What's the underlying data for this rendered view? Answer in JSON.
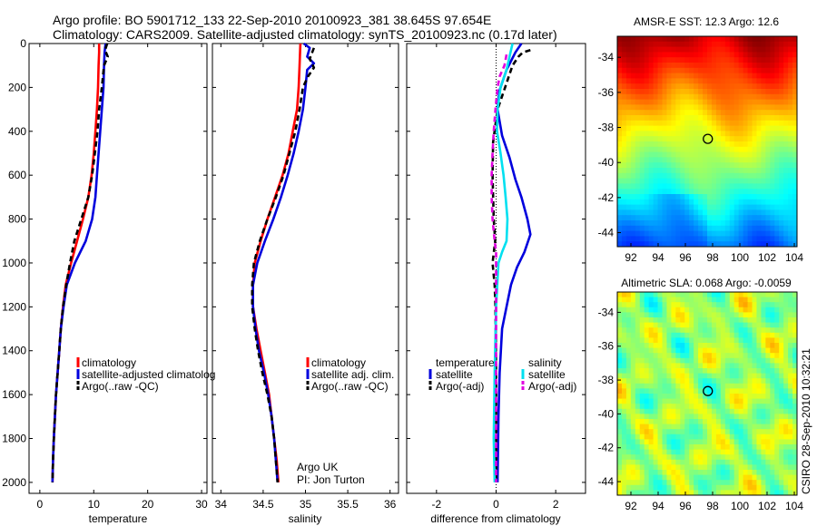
{
  "title_line1": "Argo profile: BO 5901712_133 22-Sep-2010 20100923_381 38.645S 97.654E",
  "title_line2": "Climatology: CARS2009. Satellite-adjusted climatology: synTS_20100923.nc (0.17d later)",
  "side_label": "CSIRO 28-Sep-2010 10:32:21",
  "chart_data": [
    {
      "type": "line",
      "xlabel": "temperature",
      "xlim": [
        -2,
        31
      ],
      "ylim": [
        2050,
        0
      ],
      "xticks": [
        0,
        10,
        20,
        30
      ],
      "yticks": [
        0,
        200,
        400,
        600,
        800,
        1000,
        1200,
        1400,
        1600,
        1800,
        2000
      ],
      "legend": [
        "climatology",
        "satellite-adjusted climatolog",
        "Argo(..raw -QC)"
      ],
      "series": [
        {
          "name": "climatology",
          "color": "#ff0000",
          "dash": "solid",
          "points": [
            [
              11.0,
              0
            ],
            [
              11.0,
              40
            ],
            [
              10.9,
              100
            ],
            [
              10.8,
              200
            ],
            [
              10.6,
              300
            ],
            [
              10.3,
              400
            ],
            [
              10.0,
              500
            ],
            [
              9.6,
              600
            ],
            [
              9.0,
              700
            ],
            [
              8.0,
              800
            ],
            [
              6.9,
              900
            ],
            [
              5.8,
              1000
            ],
            [
              4.8,
              1100
            ],
            [
              4.3,
              1200
            ],
            [
              3.9,
              1300
            ],
            [
              3.6,
              1400
            ],
            [
              3.3,
              1500
            ],
            [
              3.0,
              1600
            ],
            [
              2.8,
              1700
            ],
            [
              2.6,
              1800
            ],
            [
              2.45,
              1900
            ],
            [
              2.35,
              2000
            ]
          ]
        },
        {
          "name": "satellite-adjusted climatolog",
          "color": "#0000dd",
          "dash": "solid",
          "points": [
            [
              12.2,
              0
            ],
            [
              12.0,
              40
            ],
            [
              11.9,
              100
            ],
            [
              11.8,
              200
            ],
            [
              11.5,
              300
            ],
            [
              11.2,
              400
            ],
            [
              10.9,
              500
            ],
            [
              10.6,
              600
            ],
            [
              10.3,
              700
            ],
            [
              9.7,
              800
            ],
            [
              8.5,
              900
            ],
            [
              6.5,
              1000
            ],
            [
              5.0,
              1100
            ],
            [
              4.4,
              1200
            ],
            [
              3.9,
              1300
            ],
            [
              3.6,
              1400
            ],
            [
              3.3,
              1500
            ],
            [
              3.0,
              1600
            ],
            [
              2.8,
              1700
            ],
            [
              2.6,
              1800
            ],
            [
              2.45,
              1900
            ],
            [
              2.35,
              2000
            ]
          ]
        },
        {
          "name": "Argo(..raw -QC)",
          "color": "#000000",
          "dash": "6,4",
          "points": [
            [
              12.5,
              0
            ],
            [
              12.1,
              30
            ],
            [
              12.6,
              60
            ],
            [
              11.9,
              100
            ],
            [
              11.7,
              150
            ],
            [
              11.5,
              200
            ],
            [
              11.0,
              300
            ],
            [
              10.7,
              400
            ],
            [
              10.2,
              500
            ],
            [
              9.7,
              600
            ],
            [
              9.0,
              700
            ],
            [
              7.7,
              800
            ],
            [
              6.4,
              900
            ],
            [
              5.6,
              1000
            ],
            [
              4.9,
              1100
            ],
            [
              4.3,
              1200
            ],
            [
              3.9,
              1300
            ],
            [
              3.6,
              1400
            ],
            [
              3.3,
              1500
            ],
            [
              3.0,
              1600
            ],
            [
              2.8,
              1700
            ],
            [
              2.6,
              1800
            ],
            [
              2.45,
              1900
            ],
            [
              2.35,
              2000
            ]
          ]
        }
      ]
    },
    {
      "type": "line",
      "xlabel": "salinity",
      "xlim": [
        33.9,
        36.1
      ],
      "ylim": [
        2050,
        0
      ],
      "xticks": [
        34,
        34.5,
        35,
        35.5,
        36
      ],
      "yticks": [
        0,
        200,
        400,
        600,
        800,
        1000,
        1200,
        1400,
        1600,
        1800,
        2000
      ],
      "legend": [
        "climatology",
        "satellite adj. clim.",
        "Argo(..raw -QC)"
      ],
      "annotation": [
        "Argo UK",
        "PI: Jon Turton"
      ],
      "series": [
        {
          "name": "climatology",
          "color": "#ff0000",
          "dash": "solid",
          "points": [
            [
              34.94,
              0
            ],
            [
              34.93,
              100
            ],
            [
              34.92,
              200
            ],
            [
              34.9,
              300
            ],
            [
              34.85,
              400
            ],
            [
              34.8,
              500
            ],
            [
              34.73,
              600
            ],
            [
              34.64,
              700
            ],
            [
              34.55,
              800
            ],
            [
              34.47,
              900
            ],
            [
              34.4,
              1000
            ],
            [
              34.38,
              1100
            ],
            [
              34.38,
              1200
            ],
            [
              34.42,
              1300
            ],
            [
              34.47,
              1400
            ],
            [
              34.52,
              1500
            ],
            [
              34.57,
              1600
            ],
            [
              34.6,
              1700
            ],
            [
              34.63,
              1800
            ],
            [
              34.66,
              1900
            ],
            [
              34.68,
              2000
            ]
          ]
        },
        {
          "name": "satellite adj. clim.",
          "color": "#0000dd",
          "dash": "solid",
          "points": [
            [
              34.98,
              0
            ],
            [
              35.05,
              20
            ],
            [
              35.02,
              60
            ],
            [
              35.1,
              90
            ],
            [
              35.02,
              120
            ],
            [
              35.0,
              200
            ],
            [
              34.97,
              300
            ],
            [
              34.92,
              400
            ],
            [
              34.86,
              500
            ],
            [
              34.79,
              600
            ],
            [
              34.71,
              700
            ],
            [
              34.62,
              800
            ],
            [
              34.52,
              900
            ],
            [
              34.43,
              1000
            ],
            [
              34.38,
              1100
            ],
            [
              34.38,
              1200
            ],
            [
              34.41,
              1300
            ],
            [
              34.45,
              1400
            ],
            [
              34.51,
              1500
            ],
            [
              34.56,
              1600
            ],
            [
              34.6,
              1700
            ],
            [
              34.63,
              1800
            ],
            [
              34.65,
              1900
            ],
            [
              34.67,
              2000
            ]
          ]
        },
        {
          "name": "Argo(..raw -QC)",
          "color": "#000000",
          "dash": "6,4",
          "points": [
            [
              35.1,
              20
            ],
            [
              35.05,
              70
            ],
            [
              35.1,
              110
            ],
            [
              35.03,
              150
            ],
            [
              34.97,
              200
            ],
            [
              34.93,
              300
            ],
            [
              34.88,
              400
            ],
            [
              34.81,
              500
            ],
            [
              34.74,
              600
            ],
            [
              34.65,
              700
            ],
            [
              34.55,
              800
            ],
            [
              34.46,
              900
            ],
            [
              34.39,
              1000
            ],
            [
              34.37,
              1100
            ],
            [
              34.37,
              1200
            ],
            [
              34.4,
              1300
            ],
            [
              34.44,
              1400
            ],
            [
              34.49,
              1500
            ],
            [
              34.55,
              1600
            ],
            [
              34.6,
              1700
            ],
            [
              34.63,
              1800
            ],
            [
              34.65,
              1900
            ],
            [
              34.67,
              2000
            ]
          ]
        }
      ]
    },
    {
      "type": "line",
      "xlabel": "difference from climatology",
      "xlim": [
        -3,
        3
      ],
      "ylim": [
        2050,
        0
      ],
      "xticks": [
        -2,
        0,
        2
      ],
      "yticks": [
        0,
        200,
        400,
        600,
        800,
        1000,
        1200,
        1400,
        1600,
        1800,
        2000
      ],
      "legend_headers": [
        "temperature",
        "salinity"
      ],
      "legend": [
        "satellite",
        "Argo(-adj)",
        "satellite",
        "Argo(-adj)"
      ],
      "series": [
        {
          "name": "satellite",
          "group": "temperature",
          "color": "#0000dd",
          "dash": "solid",
          "points": [
            [
              0.85,
              0
            ],
            [
              0.65,
              40
            ],
            [
              0.35,
              120
            ],
            [
              0.1,
              220
            ],
            [
              0.05,
              300
            ],
            [
              0.2,
              420
            ],
            [
              0.45,
              520
            ],
            [
              0.65,
              620
            ],
            [
              0.85,
              700
            ],
            [
              1.05,
              800
            ],
            [
              1.15,
              870
            ],
            [
              0.95,
              950
            ],
            [
              0.7,
              1020
            ],
            [
              0.5,
              1100
            ],
            [
              0.35,
              1200
            ],
            [
              0.2,
              1300
            ],
            [
              0.12,
              1500
            ],
            [
              0.08,
              1700
            ],
            [
              0.05,
              2000
            ]
          ]
        },
        {
          "name": "Argo(-adj)",
          "group": "temperature",
          "color": "#000000",
          "dash": "6,4",
          "points": [
            [
              1.15,
              30
            ],
            [
              0.9,
              40
            ],
            [
              0.75,
              60
            ],
            [
              0.55,
              100
            ],
            [
              0.3,
              200
            ],
            [
              0.05,
              300
            ],
            [
              -0.1,
              450
            ],
            [
              -0.12,
              600
            ],
            [
              -0.08,
              800
            ],
            [
              -0.03,
              900
            ],
            [
              -0.12,
              1000
            ],
            [
              -0.05,
              1100
            ],
            [
              -0.02,
              1200
            ],
            [
              0.0,
              1500
            ],
            [
              0.0,
              2000
            ]
          ]
        },
        {
          "name": "satellite",
          "group": "salinity",
          "color": "#00e0f0",
          "dash": "solid",
          "points": [
            [
              0.55,
              0
            ],
            [
              0.45,
              60
            ],
            [
              0.35,
              120
            ],
            [
              0.15,
              200
            ],
            [
              0.05,
              300
            ],
            [
              0.03,
              400
            ],
            [
              0.15,
              500
            ],
            [
              0.25,
              600
            ],
            [
              0.32,
              700
            ],
            [
              0.38,
              800
            ],
            [
              0.35,
              900
            ],
            [
              0.2,
              950
            ],
            [
              0.08,
              1000
            ],
            [
              0.0,
              1200
            ],
            [
              -0.05,
              1500
            ],
            [
              -0.08,
              1800
            ],
            [
              -0.05,
              2000
            ]
          ]
        },
        {
          "name": "Argo(-adj)",
          "group": "salinity",
          "color": "#e000e0",
          "dash": "6,4",
          "points": [
            [
              0.35,
              50
            ],
            [
              0.28,
              100
            ],
            [
              0.12,
              150
            ],
            [
              0.05,
              200
            ],
            [
              -0.02,
              300
            ],
            [
              -0.08,
              400
            ],
            [
              -0.12,
              500
            ],
            [
              -0.15,
              600
            ],
            [
              -0.15,
              700
            ],
            [
              -0.12,
              800
            ],
            [
              -0.05,
              900
            ],
            [
              0.0,
              950
            ],
            [
              0.0,
              2000
            ]
          ]
        }
      ]
    },
    {
      "type": "heatmap",
      "title": "AMSR-E SST: 12.3 Argo: 12.6",
      "xlim": [
        91,
        104.2
      ],
      "ylim": [
        -44.8,
        -32.8
      ],
      "xticks": [
        92,
        94,
        96,
        98,
        100,
        102,
        104
      ],
      "yticks": [
        -34,
        -36,
        -38,
        -40,
        -42,
        -44
      ],
      "marker": {
        "lon": 97.65,
        "lat": -38.65
      },
      "colormap": "jet"
    },
    {
      "type": "heatmap",
      "title": "Altimetric SLA: 0.068 Argo: -0.0059",
      "xlim": [
        91,
        104.2
      ],
      "ylim": [
        -44.8,
        -32.8
      ],
      "xticks": [
        92,
        94,
        96,
        98,
        100,
        102,
        104
      ],
      "yticks": [
        -34,
        -36,
        -38,
        -40,
        -42,
        -44
      ],
      "marker": {
        "lon": 97.65,
        "lat": -38.65
      },
      "colormap": "jet"
    }
  ]
}
